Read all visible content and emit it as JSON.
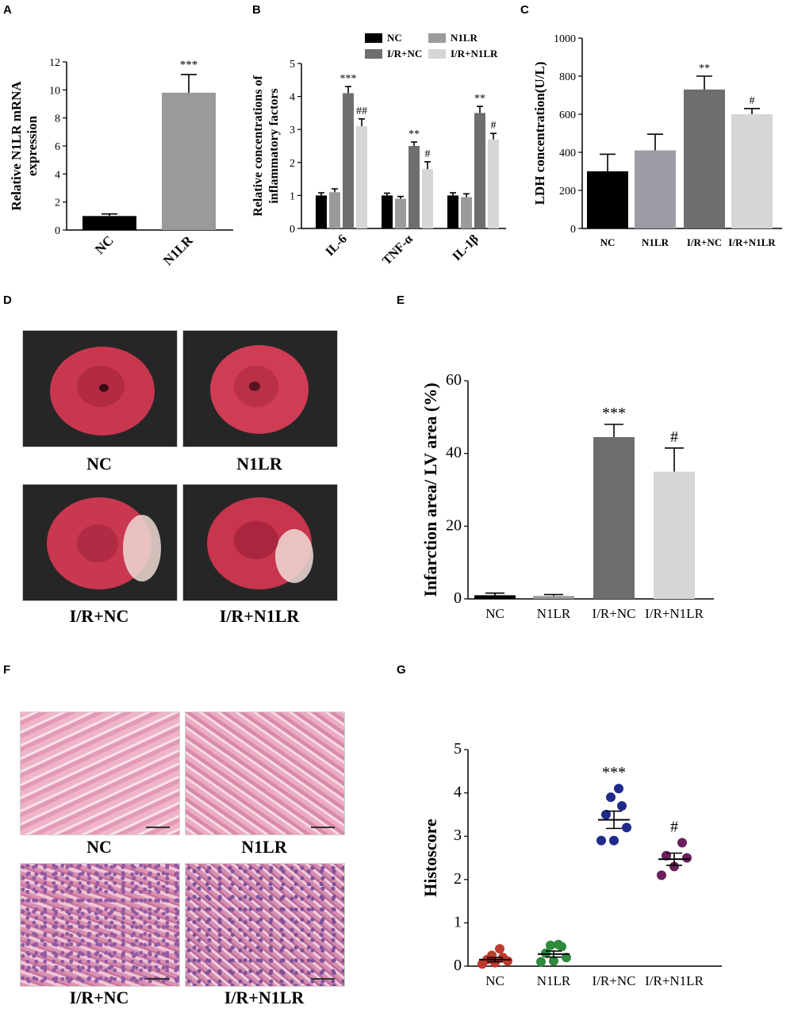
{
  "panels": {
    "A": "A",
    "B": "B",
    "C": "C",
    "D": "D",
    "E": "E",
    "F": "F",
    "G": "G"
  },
  "chart_data": [
    {
      "id": "A",
      "type": "bar",
      "ylabel": "Relative N1LR mRNA expression",
      "categories": [
        "NC",
        "N1LR"
      ],
      "values": [
        1.0,
        9.8
      ],
      "errors": [
        0.15,
        1.3
      ],
      "colors": [
        "#000000",
        "#9a9a9a"
      ],
      "annotations": [
        "",
        "***"
      ],
      "ylim": [
        0,
        12
      ],
      "yticks": [
        0,
        2,
        4,
        6,
        8,
        10,
        12
      ]
    },
    {
      "id": "B",
      "type": "bar",
      "ylabel": "Relative concentrations of inflammatory factors",
      "categories": [
        "IL-6",
        "TNF-α",
        "IL-1β"
      ],
      "series": [
        {
          "name": "NC",
          "color": "#000000",
          "values": [
            1.0,
            1.0,
            1.0
          ],
          "errors": [
            0.08,
            0.07,
            0.08
          ],
          "annotations": [
            "",
            "",
            ""
          ]
        },
        {
          "name": "N1LR",
          "color": "#9b9b9b",
          "values": [
            1.1,
            0.9,
            0.95
          ],
          "errors": [
            0.1,
            0.07,
            0.1
          ],
          "annotations": [
            "",
            "",
            ""
          ]
        },
        {
          "name": "I/R+NC",
          "color": "#6e6e6e",
          "values": [
            4.1,
            2.5,
            3.5
          ],
          "errors": [
            0.2,
            0.12,
            0.2
          ],
          "annotations": [
            "***",
            "**",
            "**"
          ]
        },
        {
          "name": "I/R+N1LR",
          "color": "#d6d6d6",
          "values": [
            3.1,
            1.8,
            2.7
          ],
          "errors": [
            0.22,
            0.22,
            0.18
          ],
          "annotations": [
            "##",
            "#",
            "#"
          ]
        }
      ],
      "ylim": [
        0,
        5
      ],
      "yticks": [
        0,
        1,
        2,
        3,
        4,
        5
      ],
      "legend": [
        "NC",
        "N1LR",
        "I/R+NC",
        "I/R+N1LR"
      ]
    },
    {
      "id": "C",
      "type": "bar",
      "ylabel": "LDH concentration(U/L)",
      "categories": [
        "NC",
        "N1LR",
        "I/R+NC",
        "I/R+N1LR"
      ],
      "values": [
        300,
        410,
        730,
        600
      ],
      "errors": [
        90,
        85,
        70,
        30
      ],
      "colors": [
        "#000000",
        "#9c9ca4",
        "#6e6e6e",
        "#d6d6d6"
      ],
      "annotations": [
        "",
        "",
        "**",
        "#"
      ],
      "ylim": [
        0,
        1000
      ],
      "yticks": [
        0,
        200,
        400,
        600,
        800,
        1000
      ]
    },
    {
      "id": "E",
      "type": "bar",
      "ylabel": "Infarction area/ LV area (%)",
      "categories": [
        "NC",
        "N1LR",
        "I/R+NC",
        "I/R+N1LR"
      ],
      "values": [
        1.0,
        0.8,
        44.5,
        35.0
      ],
      "errors": [
        0.6,
        0.4,
        3.5,
        6.5
      ],
      "colors": [
        "#000000",
        "#9b9b9b",
        "#6e6e6e",
        "#d6d6d6"
      ],
      "annotations": [
        "",
        "",
        "***",
        "#"
      ],
      "ylim": [
        0,
        60
      ],
      "yticks": [
        0,
        20,
        40,
        60
      ]
    },
    {
      "id": "G",
      "type": "scatter",
      "ylabel": "Histoscore",
      "categories": [
        "NC",
        "N1LR",
        "I/R+NC",
        "I/R+N1LR"
      ],
      "series": [
        {
          "name": "NC",
          "color": "#c0392b",
          "points": [
            0.05,
            0.08,
            0.12,
            0.15,
            0.2,
            0.25,
            0.4
          ],
          "mean": 0.15,
          "sem": 0.05,
          "annotation": ""
        },
        {
          "name": "N1LR",
          "color": "#2e8b3c",
          "points": [
            0.1,
            0.12,
            0.2,
            0.3,
            0.45,
            0.48,
            0.5
          ],
          "mean": 0.28,
          "sem": 0.07,
          "annotation": ""
        },
        {
          "name": "I/R+NC",
          "color": "#1f2a8c",
          "points": [
            2.9,
            2.9,
            3.2,
            3.5,
            3.7,
            3.9,
            4.1
          ],
          "mean": 3.38,
          "sem": 0.2,
          "annotation": "***"
        },
        {
          "name": "I/R+N1LR",
          "color": "#6b1f5c",
          "points": [
            2.1,
            2.3,
            2.5,
            2.55,
            2.85
          ],
          "mean": 2.47,
          "sem": 0.14,
          "annotation": "#"
        }
      ],
      "ylim": [
        0,
        5
      ],
      "yticks": [
        0,
        1,
        2,
        3,
        4,
        5
      ]
    }
  ],
  "photos_D": {
    "labels": [
      "NC",
      "N1LR",
      "I/R+NC",
      "I/R+N1LR"
    ]
  },
  "photos_F": {
    "labels": [
      "NC",
      "N1LR",
      "I/R+NC",
      "I/R+N1LR"
    ]
  }
}
